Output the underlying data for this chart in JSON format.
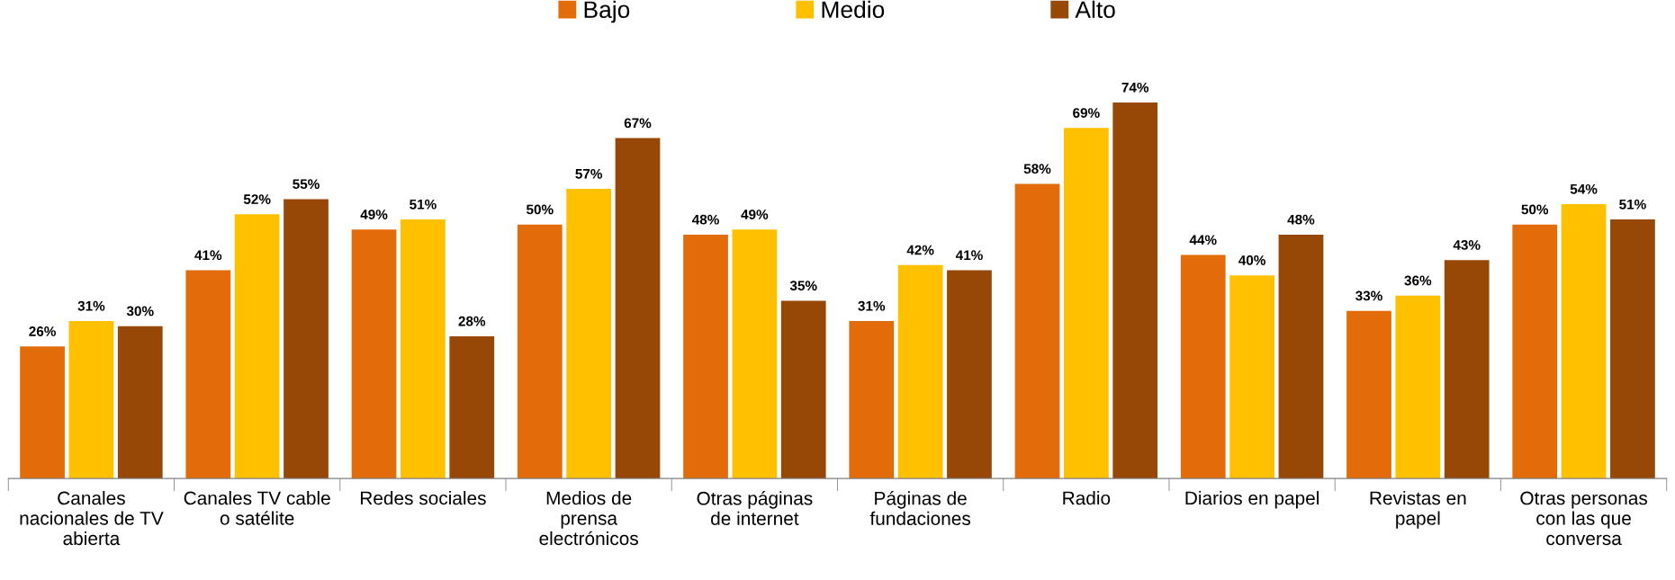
{
  "chart_data": {
    "type": "bar",
    "categories": [
      "Canales\nnacionales de TV\nabierta",
      "Canales TV cable\no satélite",
      "Redes sociales",
      "Medios de\nprensa\nelectrónicos",
      "Otras páginas\nde internet",
      "Páginas de\nfundaciones",
      "Radio",
      "Diarios en papel",
      "Revistas en\npapel",
      "Otras personas\ncon las que\nconversa"
    ],
    "series": [
      {
        "name": "Bajo",
        "color": "#e36c0a",
        "values": [
          26,
          41,
          49,
          50,
          48,
          31,
          58,
          44,
          33,
          50
        ],
        "value_labels": [
          "26%",
          "41%",
          "49%",
          "50%",
          "48%",
          "31%",
          "58%",
          "44%",
          "33%",
          "50%"
        ]
      },
      {
        "name": "Medio",
        "color": "#ffc000",
        "values": [
          31,
          52,
          51,
          57,
          49,
          42,
          69,
          40,
          36,
          54
        ],
        "value_labels": [
          "31%",
          "52%",
          "51%",
          "57%",
          "49%",
          "42%",
          "69%",
          "40%",
          "36%",
          "54%"
        ]
      },
      {
        "name": "Alto",
        "color": "#974706",
        "values": [
          30,
          55,
          28,
          67,
          35,
          41,
          74,
          48,
          43,
          51
        ],
        "value_labels": [
          "30%",
          "55%",
          "28%",
          "67%",
          "35%",
          "41%",
          "74%",
          "48%",
          "43%",
          "51%"
        ]
      }
    ],
    "legend": "top",
    "grid": false
  }
}
